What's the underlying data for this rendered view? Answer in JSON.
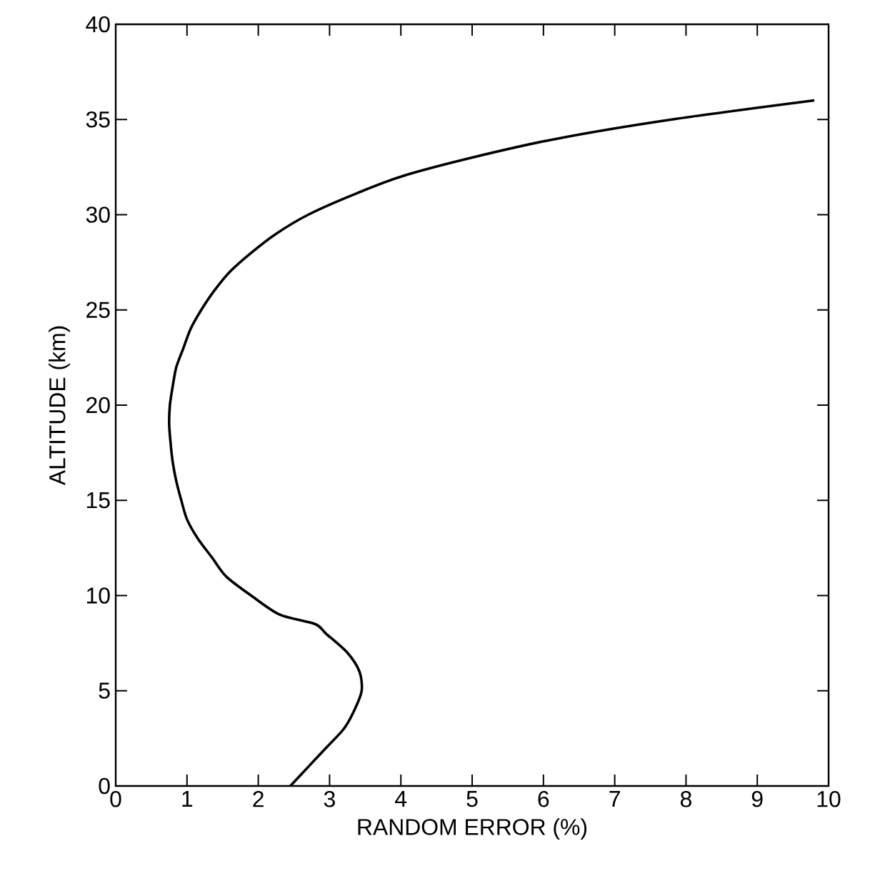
{
  "chart_data": {
    "type": "line",
    "xlabel": "RANDOM ERROR (%)",
    "ylabel": "ALTITUDE (km)",
    "xlim": [
      0,
      10
    ],
    "ylim": [
      0,
      40
    ],
    "xticks": [
      0,
      1,
      2,
      3,
      4,
      5,
      6,
      7,
      8,
      9,
      10
    ],
    "yticks": [
      0,
      5,
      10,
      15,
      20,
      25,
      30,
      35,
      40
    ],
    "marker": "none",
    "line_style": "solid",
    "series": [
      {
        "color": "#000000",
        "x": [
          2.45,
          2.7,
          2.95,
          3.2,
          3.35,
          3.45,
          3.42,
          3.25,
          2.95,
          2.8,
          2.3,
          1.9,
          1.55,
          1.35,
          1.15,
          1.0,
          0.92,
          0.85,
          0.8,
          0.77,
          0.75,
          0.76,
          0.8,
          0.85,
          0.95,
          1.05,
          1.2,
          1.38,
          1.6,
          1.9,
          2.25,
          2.7,
          3.3,
          4.0,
          5.0,
          6.2,
          7.8,
          9.8
        ],
        "values": [
          0,
          1,
          2,
          3,
          4,
          5,
          6,
          7,
          8,
          8.5,
          9,
          10,
          11,
          12,
          13,
          14,
          15,
          16,
          17,
          18,
          19,
          20,
          21,
          22,
          23,
          24,
          25,
          26,
          27,
          28,
          29,
          30,
          31,
          32,
          33,
          34,
          35,
          36
        ]
      }
    ]
  }
}
